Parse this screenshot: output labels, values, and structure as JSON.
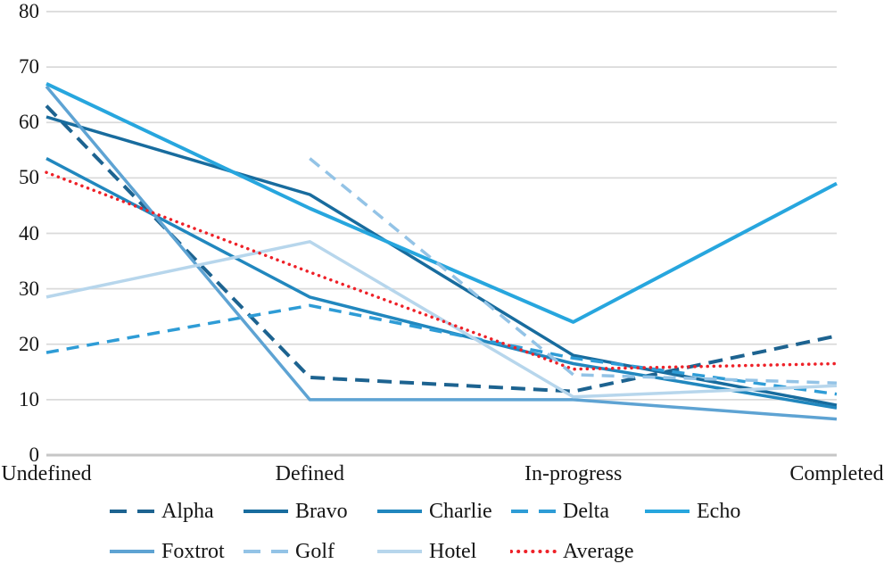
{
  "chart_data": {
    "type": "line",
    "title": "",
    "xlabel": "",
    "ylabel": "",
    "categories": [
      "Undefined",
      "Defined",
      "In-progress",
      "Completed"
    ],
    "y_ticks": [
      0,
      10,
      20,
      30,
      40,
      50,
      60,
      70,
      80
    ],
    "ylim": [
      0,
      80
    ],
    "grid": "horizontal",
    "legend_position": "bottom",
    "series": [
      {
        "name": "Alpha",
        "color": "#1D6390",
        "style": "dashed",
        "values": [
          63,
          14,
          11.5,
          21.5
        ]
      },
      {
        "name": "Bravo",
        "color": "#186C9E",
        "style": "solid",
        "values": [
          61,
          47,
          18,
          9
        ]
      },
      {
        "name": "Charlie",
        "color": "#2187BE",
        "style": "solid",
        "values": [
          53.5,
          28.5,
          16.5,
          8.5
        ]
      },
      {
        "name": "Delta",
        "color": "#2E9CD6",
        "style": "dashed",
        "values": [
          18.5,
          27,
          17.5,
          11
        ]
      },
      {
        "name": "Echo",
        "color": "#27A6DE",
        "style": "solid",
        "values": [
          67,
          44.5,
          24,
          49
        ]
      },
      {
        "name": "Foxtrot",
        "color": "#5EA3D3",
        "style": "solid",
        "values": [
          66.5,
          10,
          10,
          6.5
        ]
      },
      {
        "name": "Golf",
        "color": "#93C3E6",
        "style": "dashed",
        "values": [
          null,
          53.5,
          14.5,
          13
        ]
      },
      {
        "name": "Hotel",
        "color": "#B7D6EC",
        "style": "solid",
        "values": [
          28.5,
          38.5,
          10.5,
          12.5
        ]
      },
      {
        "name": "Average",
        "color": "#EE2128",
        "style": "dotted",
        "values": [
          51,
          33,
          15.5,
          16.5
        ]
      }
    ],
    "legend_rows": [
      [
        "Alpha",
        "Bravo",
        "Charlie",
        "Delta",
        "Echo"
      ],
      [
        "Foxtrot",
        "Golf",
        "Hotel",
        "Average"
      ]
    ]
  },
  "colors": {
    "gridline": "#DADADA",
    "axis_line": "#C6C6C6",
    "text": "#161616",
    "background": "#FFFFFF"
  }
}
